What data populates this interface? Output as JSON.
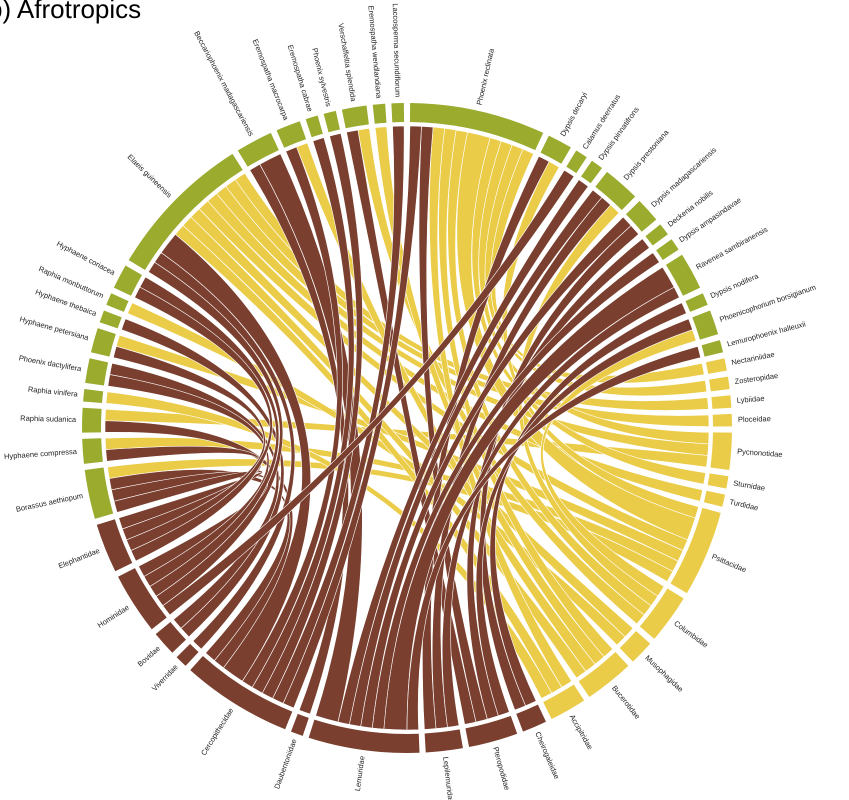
{
  "chart_data": {
    "type": "chord",
    "title": "b) Afrotropics",
    "nodes": [
      {
        "name": "Phoenix reclinata",
        "color": "#9aab2e"
      },
      {
        "name": "Dypsis decaryi",
        "color": "#9aab2e"
      },
      {
        "name": "Calamus deerratus",
        "color": "#9aab2e"
      },
      {
        "name": "Dypsis pinnatifrons",
        "color": "#9aab2e"
      },
      {
        "name": "Dypsis prestoniana",
        "color": "#9aab2e"
      },
      {
        "name": "Dypsis madagascariensis",
        "color": "#9aab2e"
      },
      {
        "name": "Deckenia nobilis",
        "color": "#9aab2e"
      },
      {
        "name": "Dypsis ampasindavae",
        "color": "#9aab2e"
      },
      {
        "name": "Ravenea sambiranensis",
        "color": "#9aab2e"
      },
      {
        "name": "Dypsis nodifera",
        "color": "#9aab2e"
      },
      {
        "name": "Phoenicophorium borsigianum",
        "color": "#9aab2e"
      },
      {
        "name": "Lemurophoenix halleuxii",
        "color": "#9aab2e"
      },
      {
        "name": "Nectariniidae",
        "color": "#ebcc48"
      },
      {
        "name": "Zosteropidae",
        "color": "#ebcc48"
      },
      {
        "name": "Lybiidae",
        "color": "#ebcc48"
      },
      {
        "name": "Ploceidae",
        "color": "#ebcc48"
      },
      {
        "name": "Pycnonotidae",
        "color": "#ebcc48"
      },
      {
        "name": "Sturnidae",
        "color": "#ebcc48"
      },
      {
        "name": "Turdidae",
        "color": "#ebcc48"
      },
      {
        "name": "Psittacidae",
        "color": "#ebcc48"
      },
      {
        "name": "Columbidae",
        "color": "#ebcc48"
      },
      {
        "name": "Musophagidae",
        "color": "#ebcc48"
      },
      {
        "name": "Bucerotidae",
        "color": "#ebcc48"
      },
      {
        "name": "Accipitridae",
        "color": "#ebcc48"
      },
      {
        "name": "Cheirogaleidae",
        "color": "#7a3f2f"
      },
      {
        "name": "Pteropodidae",
        "color": "#7a3f2f"
      },
      {
        "name": "Lepilemuridae",
        "color": "#7a3f2f"
      },
      {
        "name": "Lemuridae",
        "color": "#7a3f2f"
      },
      {
        "name": "Daubentoniidae",
        "color": "#7a3f2f"
      },
      {
        "name": "Cercopithecidae",
        "color": "#7a3f2f"
      },
      {
        "name": "Viverridae",
        "color": "#7a3f2f"
      },
      {
        "name": "Bovidae",
        "color": "#7a3f2f"
      },
      {
        "name": "Hominidae",
        "color": "#7a3f2f"
      },
      {
        "name": "Elephantidae",
        "color": "#7a3f2f"
      },
      {
        "name": "Borassus aethiopum",
        "color": "#9aab2e"
      },
      {
        "name": "Hyphaene compressa",
        "color": "#9aab2e"
      },
      {
        "name": "Raphia sudanica",
        "color": "#9aab2e"
      },
      {
        "name": "Raphia vinifera",
        "color": "#9aab2e"
      },
      {
        "name": "Phoenix dactylifera",
        "color": "#9aab2e"
      },
      {
        "name": "Hyphaene petersiana",
        "color": "#9aab2e"
      },
      {
        "name": "Hyphaene thebaica",
        "color": "#9aab2e"
      },
      {
        "name": "Raphia monbuttorum",
        "color": "#9aab2e"
      },
      {
        "name": "Hyphaene coriacea",
        "color": "#9aab2e"
      },
      {
        "name": "Elaeis guineensis",
        "color": "#9aab2e"
      },
      {
        "name": "Beccariophoenix madagascariensis",
        "color": "#9aab2e"
      },
      {
        "name": "Eremospatha macrocarpa",
        "color": "#9aab2e"
      },
      {
        "name": "Eremospatha cabrae",
        "color": "#9aab2e"
      },
      {
        "name": "Phoenix sylvestris",
        "color": "#9aab2e"
      },
      {
        "name": "Verschaffeltia splendida",
        "color": "#9aab2e"
      },
      {
        "name": "Eremospatha wendlandiana",
        "color": "#9aab2e"
      },
      {
        "name": "Laccosperma secundiflorum",
        "color": "#9aab2e"
      }
    ],
    "links": [
      {
        "source": 12,
        "target": 0,
        "value": 1
      },
      {
        "source": 13,
        "target": 0,
        "value": 1
      },
      {
        "source": 14,
        "target": 43,
        "value": 1
      },
      {
        "source": 15,
        "target": 43,
        "value": 1
      },
      {
        "source": 16,
        "target": 0,
        "value": 1
      },
      {
        "source": 16,
        "target": 43,
        "value": 1
      },
      {
        "source": 16,
        "target": 36,
        "value": 1
      },
      {
        "source": 17,
        "target": 0,
        "value": 1
      },
      {
        "source": 18,
        "target": 43,
        "value": 1
      },
      {
        "source": 19,
        "target": 0,
        "value": 2
      },
      {
        "source": 19,
        "target": 1,
        "value": 1
      },
      {
        "source": 19,
        "target": 43,
        "value": 1
      },
      {
        "source": 19,
        "target": 34,
        "value": 1
      },
      {
        "source": 19,
        "target": 35,
        "value": 1
      },
      {
        "source": 19,
        "target": 39,
        "value": 1
      },
      {
        "source": 20,
        "target": 0,
        "value": 1
      },
      {
        "source": 20,
        "target": 4,
        "value": 1
      },
      {
        "source": 20,
        "target": 10,
        "value": 1
      },
      {
        "source": 20,
        "target": 48,
        "value": 1
      },
      {
        "source": 21,
        "target": 43,
        "value": 1
      },
      {
        "source": 21,
        "target": 41,
        "value": 1
      },
      {
        "source": 22,
        "target": 0,
        "value": 1
      },
      {
        "source": 22,
        "target": 43,
        "value": 1
      },
      {
        "source": 22,
        "target": 45,
        "value": 1
      },
      {
        "source": 22,
        "target": 49,
        "value": 1
      },
      {
        "source": 23,
        "target": 0,
        "value": 1
      },
      {
        "source": 23,
        "target": 43,
        "value": 1
      },
      {
        "source": 23,
        "target": 37,
        "value": 1
      },
      {
        "source": 24,
        "target": 5,
        "value": 1
      },
      {
        "source": 24,
        "target": 9,
        "value": 1
      },
      {
        "source": 25,
        "target": 6,
        "value": 1
      },
      {
        "source": 25,
        "target": 10,
        "value": 1
      },
      {
        "source": 25,
        "target": 48,
        "value": 1
      },
      {
        "source": 25,
        "target": 0,
        "value": 1
      },
      {
        "source": 26,
        "target": 4,
        "value": 1
      },
      {
        "source": 26,
        "target": 8,
        "value": 1
      },
      {
        "source": 26,
        "target": 1,
        "value": 1
      },
      {
        "source": 27,
        "target": 4,
        "value": 1
      },
      {
        "source": 27,
        "target": 8,
        "value": 2
      },
      {
        "source": 27,
        "target": 5,
        "value": 1
      },
      {
        "source": 27,
        "target": 11,
        "value": 1
      },
      {
        "source": 27,
        "target": 44,
        "value": 2
      },
      {
        "source": 27,
        "target": 3,
        "value": 1
      },
      {
        "source": 27,
        "target": 7,
        "value": 1
      },
      {
        "source": 28,
        "target": 44,
        "value": 1
      },
      {
        "source": 29,
        "target": 43,
        "value": 2
      },
      {
        "source": 29,
        "target": 36,
        "value": 1
      },
      {
        "source": 29,
        "target": 34,
        "value": 1
      },
      {
        "source": 29,
        "target": 0,
        "value": 1
      },
      {
        "source": 29,
        "target": 45,
        "value": 1
      },
      {
        "source": 29,
        "target": 46,
        "value": 1
      },
      {
        "source": 29,
        "target": 47,
        "value": 1
      },
      {
        "source": 29,
        "target": 50,
        "value": 1
      },
      {
        "source": 30,
        "target": 43,
        "value": 1
      },
      {
        "source": 31,
        "target": 38,
        "value": 1
      },
      {
        "source": 31,
        "target": 40,
        "value": 1
      },
      {
        "source": 32,
        "target": 43,
        "value": 1
      },
      {
        "source": 32,
        "target": 34,
        "value": 1
      },
      {
        "source": 32,
        "target": 38,
        "value": 1
      },
      {
        "source": 32,
        "target": 42,
        "value": 1
      },
      {
        "source": 32,
        "target": 2,
        "value": 1
      },
      {
        "source": 33,
        "target": 34,
        "value": 1
      },
      {
        "source": 33,
        "target": 35,
        "value": 1
      },
      {
        "source": 33,
        "target": 39,
        "value": 1
      },
      {
        "source": 33,
        "target": 42,
        "value": 1
      }
    ]
  }
}
